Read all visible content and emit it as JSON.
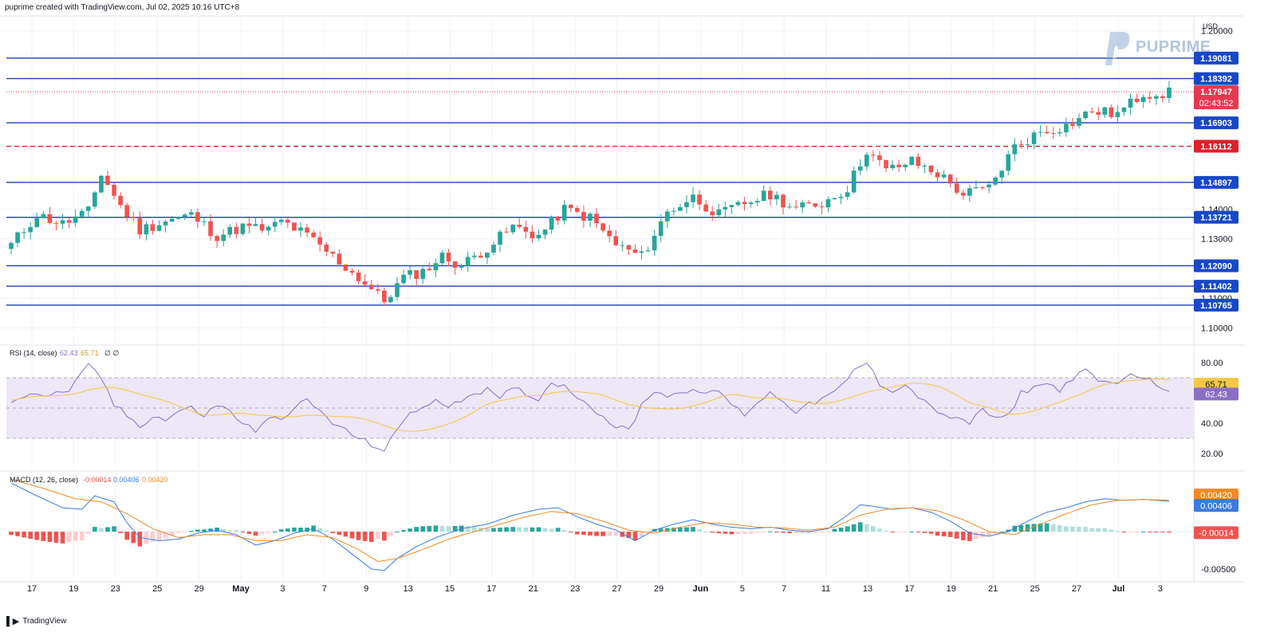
{
  "header": {
    "text": "puprime created with TradingView.com, Jul 02, 2025 10:16 UTC+8"
  },
  "branding": {
    "logo_text": "PUPRIME",
    "footer_text": "TradingView"
  },
  "colors": {
    "up": "#26a69a",
    "down": "#ef5350",
    "level_line": "#1e3fb8",
    "level_label_bg": "#1848c8",
    "dashed_level": "#e0202a",
    "price_label_bg": "#e53950",
    "rsi_line": "#8a6fc4",
    "rsi_ma": "#f5c842",
    "rsi_band": "#ede7f8",
    "macd_line": "#3b7ae0",
    "signal_line": "#f08a24",
    "hist_up_strong": "#26a69a",
    "hist_up_weak": "#b2dfdb",
    "hist_down_strong": "#ef5350",
    "hist_down_weak": "#ffcdd2"
  },
  "chart_data": [
    {
      "type": "candlestick",
      "currency": "USD",
      "y_ticks": [
        "1.20000",
        "1.14000",
        "1.13000",
        "1.11000",
        "1.10000"
      ],
      "ylim": [
        1.095,
        1.205
      ],
      "levels": [
        {
          "value": 1.19081,
          "label": "1.19081",
          "style": "solid"
        },
        {
          "value": 1.18392,
          "label": "1.18392",
          "style": "solid"
        },
        {
          "value": 1.16903,
          "label": "1.16903",
          "style": "solid"
        },
        {
          "value": 1.16112,
          "label": "1.16112",
          "style": "dashed"
        },
        {
          "value": 1.14897,
          "label": "1.14897",
          "style": "solid"
        },
        {
          "value": 1.13721,
          "label": "1.13721",
          "style": "solid"
        },
        {
          "value": 1.1209,
          "label": "1.12090",
          "style": "solid"
        },
        {
          "value": 1.11402,
          "label": "1.11402",
          "style": "solid"
        },
        {
          "value": 1.10765,
          "label": "1.10765",
          "style": "solid"
        }
      ],
      "last_price": {
        "value": 1.17947,
        "label": "1.17947",
        "countdown": "02:43:52"
      },
      "x_ticks": [
        "17",
        "19",
        "23",
        "25",
        "29",
        "May",
        "3",
        "7",
        "9",
        "13",
        "15",
        "17",
        "21",
        "23",
        "27",
        "29",
        "Jun",
        "5",
        "7",
        "11",
        "13",
        "17",
        "19",
        "21",
        "25",
        "27",
        "Jul",
        "3"
      ],
      "path_points": [
        [
          0,
          1.128
        ],
        [
          4,
          1.138
        ],
        [
          8,
          1.135
        ],
        [
          12,
          1.139
        ],
        [
          14,
          1.152
        ],
        [
          17,
          1.141
        ],
        [
          20,
          1.133
        ],
        [
          24,
          1.136
        ],
        [
          28,
          1.138
        ],
        [
          32,
          1.131
        ],
        [
          36,
          1.134
        ],
        [
          40,
          1.133
        ],
        [
          42,
          1.136
        ],
        [
          46,
          1.131
        ],
        [
          50,
          1.124
        ],
        [
          55,
          1.115
        ],
        [
          58,
          1.109
        ],
        [
          61,
          1.117
        ],
        [
          64,
          1.119
        ],
        [
          67,
          1.124
        ],
        [
          70,
          1.121
        ],
        [
          74,
          1.127
        ],
        [
          78,
          1.134
        ],
        [
          82,
          1.131
        ],
        [
          86,
          1.14
        ],
        [
          90,
          1.137
        ],
        [
          94,
          1.128
        ],
        [
          98,
          1.124
        ],
        [
          102,
          1.139
        ],
        [
          106,
          1.144
        ],
        [
          110,
          1.138
        ],
        [
          114,
          1.142
        ],
        [
          118,
          1.145
        ],
        [
          122,
          1.14
        ],
        [
          126,
          1.142
        ],
        [
          130,
          1.147
        ],
        [
          133,
          1.16
        ],
        [
          136,
          1.153
        ],
        [
          140,
          1.156
        ],
        [
          144,
          1.152
        ],
        [
          148,
          1.145
        ],
        [
          152,
          1.147
        ],
        [
          156,
          1.161
        ],
        [
          160,
          1.166
        ],
        [
          164,
          1.168
        ],
        [
          168,
          1.173
        ],
        [
          172,
          1.172
        ],
        [
          176,
          1.179
        ],
        [
          180,
          1.179
        ]
      ],
      "candle_count": 181
    },
    {
      "type": "line",
      "title": "RSI (14, close)",
      "values_shown": [
        "62.43",
        "65.71"
      ],
      "extra": "∅ ∅",
      "y_ticks": [
        "80.00",
        "40.00",
        "20.00"
      ],
      "ylim": [
        10,
        90
      ],
      "band": [
        30,
        70
      ],
      "midline": 50,
      "series": [
        {
          "name": "RSI",
          "last": 62.43,
          "label": "62.43"
        },
        {
          "name": "RSI-based MA",
          "last": 65.71,
          "label": "65.71"
        }
      ],
      "rsi_points": [
        [
          0,
          55
        ],
        [
          3,
          60
        ],
        [
          6,
          58
        ],
        [
          9,
          62
        ],
        [
          11,
          72
        ],
        [
          12,
          78
        ],
        [
          14,
          70
        ],
        [
          16,
          52
        ],
        [
          18,
          45
        ],
        [
          20,
          38
        ],
        [
          22,
          45
        ],
        [
          24,
          42
        ],
        [
          26,
          48
        ],
        [
          28,
          50
        ],
        [
          30,
          45
        ],
        [
          32,
          52
        ],
        [
          34,
          48
        ],
        [
          36,
          40
        ],
        [
          38,
          35
        ],
        [
          40,
          42
        ],
        [
          42,
          44
        ],
        [
          44,
          50
        ],
        [
          46,
          55
        ],
        [
          48,
          48
        ],
        [
          50,
          40
        ],
        [
          52,
          35
        ],
        [
          54,
          30
        ],
        [
          56,
          26
        ],
        [
          58,
          22
        ],
        [
          60,
          35
        ],
        [
          62,
          48
        ],
        [
          64,
          50
        ],
        [
          66,
          54
        ],
        [
          68,
          52
        ],
        [
          70,
          56
        ],
        [
          72,
          60
        ],
        [
          74,
          62
        ],
        [
          76,
          55
        ],
        [
          78,
          64
        ],
        [
          80,
          60
        ],
        [
          82,
          55
        ],
        [
          84,
          68
        ],
        [
          86,
          64
        ],
        [
          88,
          58
        ],
        [
          90,
          52
        ],
        [
          92,
          44
        ],
        [
          94,
          38
        ],
        [
          96,
          35
        ],
        [
          98,
          52
        ],
        [
          100,
          62
        ],
        [
          102,
          58
        ],
        [
          104,
          60
        ],
        [
          106,
          64
        ],
        [
          108,
          58
        ],
        [
          110,
          62
        ],
        [
          112,
          52
        ],
        [
          114,
          46
        ],
        [
          116,
          54
        ],
        [
          118,
          60
        ],
        [
          120,
          55
        ],
        [
          122,
          48
        ],
        [
          124,
          52
        ],
        [
          126,
          56
        ],
        [
          128,
          60
        ],
        [
          130,
          68
        ],
        [
          131,
          75
        ],
        [
          133,
          80
        ],
        [
          135,
          66
        ],
        [
          137,
          62
        ],
        [
          139,
          65
        ],
        [
          141,
          58
        ],
        [
          143,
          50
        ],
        [
          145,
          46
        ],
        [
          147,
          42
        ],
        [
          149,
          40
        ],
        [
          151,
          50
        ],
        [
          153,
          42
        ],
        [
          155,
          45
        ],
        [
          157,
          60
        ],
        [
          159,
          64
        ],
        [
          161,
          66
        ],
        [
          163,
          62
        ],
        [
          165,
          70
        ],
        [
          167,
          74
        ],
        [
          169,
          68
        ],
        [
          171,
          66
        ],
        [
          173,
          70
        ],
        [
          175,
          72
        ],
        [
          177,
          68
        ],
        [
          179,
          64
        ],
        [
          180,
          62.43
        ]
      ]
    },
    {
      "type": "line",
      "title": "MACD (12, 26, close)",
      "values_shown": [
        "-0.00014",
        "0.00406",
        "0.00420"
      ],
      "y_ticks": [
        "-0.00500"
      ],
      "ylim": [
        -0.0065,
        0.0078
      ],
      "series": [
        {
          "name": "Histogram",
          "last": -0.00014,
          "label": "-0.00014"
        },
        {
          "name": "MACD",
          "last": 0.00406,
          "label": "0.00406"
        },
        {
          "name": "Signal",
          "last": 0.0042,
          "label": "0.00420"
        }
      ],
      "macd_points": [
        [
          0,
          0.0065
        ],
        [
          4,
          0.0048
        ],
        [
          8,
          0.0032
        ],
        [
          11,
          0.003
        ],
        [
          13,
          0.0048
        ],
        [
          16,
          0.004
        ],
        [
          18,
          0.0012
        ],
        [
          20,
          -0.0008
        ],
        [
          23,
          -0.0012
        ],
        [
          26,
          -0.001
        ],
        [
          29,
          -0.0002
        ],
        [
          32,
          0.0002
        ],
        [
          35,
          -0.0004
        ],
        [
          38,
          -0.0018
        ],
        [
          41,
          -0.0012
        ],
        [
          44,
          -0.0002
        ],
        [
          47,
          0.0004
        ],
        [
          50,
          -0.001
        ],
        [
          53,
          -0.003
        ],
        [
          56,
          -0.005
        ],
        [
          58,
          -0.0052
        ],
        [
          60,
          -0.0036
        ],
        [
          63,
          -0.002
        ],
        [
          66,
          -0.0008
        ],
        [
          70,
          0.0004
        ],
        [
          74,
          0.001
        ],
        [
          78,
          0.0022
        ],
        [
          82,
          0.003
        ],
        [
          85,
          0.0032
        ],
        [
          88,
          0.002
        ],
        [
          91,
          0.001
        ],
        [
          94,
          0.0002
        ],
        [
          97,
          -0.0012
        ],
        [
          100,
          0.0002
        ],
        [
          103,
          0.001
        ],
        [
          106,
          0.0016
        ],
        [
          109,
          0.001
        ],
        [
          112,
          0.0006
        ],
        [
          115,
          0.0004
        ],
        [
          118,
          0.0006
        ],
        [
          121,
          0.0002
        ],
        [
          124,
          0.0
        ],
        [
          127,
          0.0004
        ],
        [
          130,
          0.0022
        ],
        [
          132,
          0.0036
        ],
        [
          134,
          0.0034
        ],
        [
          137,
          0.003
        ],
        [
          140,
          0.0032
        ],
        [
          143,
          0.0026
        ],
        [
          146,
          0.0014
        ],
        [
          149,
          -0.0002
        ],
        [
          152,
          -0.0006
        ],
        [
          155,
          0.0
        ],
        [
          158,
          0.0014
        ],
        [
          161,
          0.0026
        ],
        [
          164,
          0.0032
        ],
        [
          167,
          0.004
        ],
        [
          170,
          0.0044
        ],
        [
          173,
          0.0042
        ],
        [
          176,
          0.0043
        ],
        [
          178,
          0.0042
        ],
        [
          180,
          0.00406
        ]
      ],
      "signal_points": [
        [
          0,
          0.007
        ],
        [
          5,
          0.0058
        ],
        [
          10,
          0.0044
        ],
        [
          14,
          0.004
        ],
        [
          18,
          0.0024
        ],
        [
          22,
          0.0004
        ],
        [
          26,
          -0.0008
        ],
        [
          30,
          -0.0004
        ],
        [
          34,
          -0.0004
        ],
        [
          38,
          -0.0012
        ],
        [
          42,
          -0.0012
        ],
        [
          46,
          -0.0004
        ],
        [
          50,
          -0.0008
        ],
        [
          54,
          -0.0024
        ],
        [
          57,
          -0.004
        ],
        [
          60,
          -0.0036
        ],
        [
          64,
          -0.0024
        ],
        [
          68,
          -0.001
        ],
        [
          72,
          0.0
        ],
        [
          76,
          0.001
        ],
        [
          80,
          0.002
        ],
        [
          84,
          0.0027
        ],
        [
          88,
          0.0024
        ],
        [
          92,
          0.0014
        ],
        [
          96,
          0.0002
        ],
        [
          100,
          -0.0002
        ],
        [
          104,
          0.0006
        ],
        [
          108,
          0.0012
        ],
        [
          112,
          0.001
        ],
        [
          116,
          0.0006
        ],
        [
          120,
          0.0005
        ],
        [
          124,
          0.0002
        ],
        [
          128,
          0.0006
        ],
        [
          132,
          0.0022
        ],
        [
          136,
          0.003
        ],
        [
          140,
          0.0032
        ],
        [
          144,
          0.0028
        ],
        [
          148,
          0.0016
        ],
        [
          152,
          0.0
        ],
        [
          156,
          -0.0004
        ],
        [
          160,
          0.001
        ],
        [
          164,
          0.0024
        ],
        [
          168,
          0.0036
        ],
        [
          172,
          0.0042
        ],
        [
          176,
          0.0043
        ],
        [
          180,
          0.0042
        ]
      ]
    }
  ]
}
